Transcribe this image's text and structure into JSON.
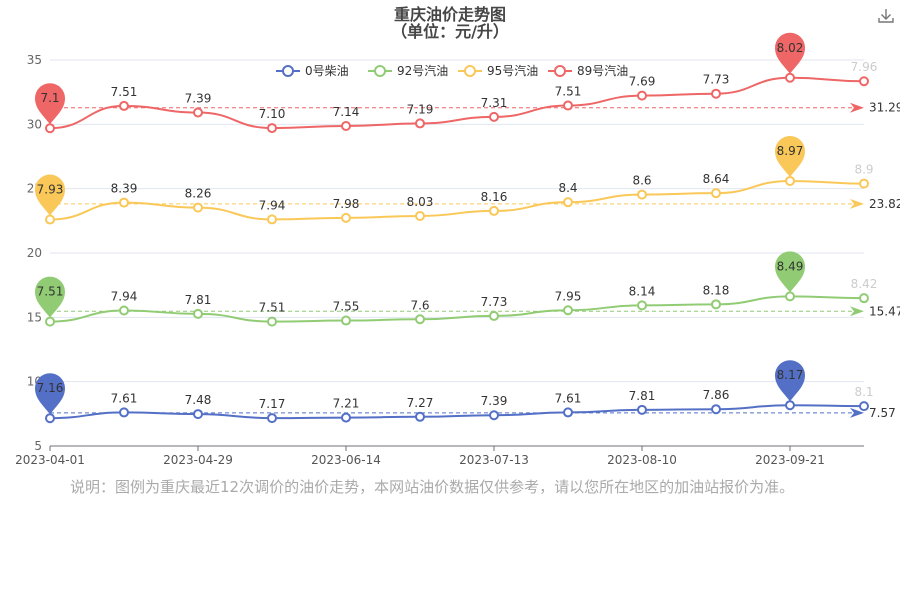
{
  "chart_data": {
    "type": "line",
    "title": "重庆油价走势图",
    "subtitle": "（单位：元/升）",
    "x_tick_labels": [
      "2023-04-01",
      "2023-04-29",
      "2023-06-14",
      "2023-07-13",
      "2023-08-10",
      "2023-09-21"
    ],
    "x_tick_indices": [
      0,
      2,
      4,
      6,
      8,
      10
    ],
    "ylim": [
      5,
      35
    ],
    "yticks": [
      "5",
      "10",
      "15",
      "20",
      "25",
      "30",
      "35"
    ],
    "grid": true,
    "legend_position": "top-center",
    "series": [
      {
        "name": "0号柴油",
        "color": "#5470c6",
        "values": [
          7.16,
          7.61,
          7.48,
          7.17,
          7.21,
          7.27,
          7.39,
          7.61,
          7.81,
          7.86,
          8.17,
          8.1
        ],
        "labels": [
          "7.16",
          "7.61",
          "7.48",
          "7.17",
          "7.21",
          "7.27",
          "7.39",
          "7.61",
          "7.81",
          "7.86",
          "8.17",
          "8.1"
        ],
        "plot_y": [
          7.16,
          7.61,
          7.48,
          7.17,
          7.21,
          7.27,
          7.39,
          7.61,
          7.81,
          7.86,
          8.17,
          8.1
        ],
        "max_pin": "8.17",
        "min_pin": "7.16",
        "average_label": "7.57",
        "average_value": 7.57
      },
      {
        "name": "92号汽油",
        "color": "#91cc75",
        "values": [
          7.51,
          7.94,
          7.81,
          7.51,
          7.55,
          7.6,
          7.73,
          7.95,
          8.14,
          8.18,
          8.49,
          8.42
        ],
        "labels": [
          "7.51",
          "7.94",
          "7.81",
          "7.51",
          "7.55",
          "7.6",
          "7.73",
          "7.95",
          "8.14",
          "8.18",
          "8.49",
          "8.42"
        ],
        "plot_y": [
          14.67,
          15.53,
          15.27,
          14.67,
          14.75,
          14.85,
          15.11,
          15.55,
          15.93,
          16.01,
          16.63,
          16.49
        ],
        "max_pin": "8.49",
        "min_pin": "7.51",
        "average_label": "15.47",
        "average_value": 15.47
      },
      {
        "name": "95号汽油",
        "color": "#fac858",
        "values": [
          7.93,
          8.39,
          8.26,
          7.94,
          7.98,
          8.03,
          8.16,
          8.4,
          8.6,
          8.64,
          8.97,
          8.9
        ],
        "labels": [
          "7.93",
          "8.39",
          "8.26",
          "7.94",
          "7.98",
          "8.03",
          "8.16",
          "8.4",
          "8.6",
          "8.64",
          "8.97",
          "8.9"
        ],
        "plot_y": [
          22.6,
          23.92,
          23.53,
          22.61,
          22.73,
          22.88,
          23.27,
          23.95,
          24.54,
          24.65,
          25.6,
          25.39
        ],
        "max_pin": "8.97",
        "min_pin": "7.93",
        "average_label": "23.82",
        "average_value": 23.82
      },
      {
        "name": "89号汽油",
        "color": "#ee6666",
        "values": [
          7.1,
          7.51,
          7.39,
          7.1,
          7.14,
          7.19,
          7.31,
          7.51,
          7.69,
          7.73,
          8.02,
          7.96
        ],
        "labels": [
          "7.1",
          "7.51",
          "7.39",
          "7.10",
          "7.14",
          "7.19",
          "7.31",
          "7.51",
          "7.69",
          "7.73",
          "8.02",
          "7.96"
        ],
        "plot_y": [
          29.7,
          31.43,
          30.92,
          29.71,
          29.87,
          30.07,
          30.58,
          31.46,
          32.23,
          32.38,
          33.62,
          33.35
        ],
        "max_pin": "8.02",
        "min_pin": "7.1",
        "average_label": "31.29",
        "average_value": 31.29
      }
    ]
  },
  "note": "说明：图例为重庆最近12次调价的油价走势，本网站油价数据仅供参考，请以您所在地区的加油站报价为准。",
  "toolbar": {
    "download_icon": "download-icon"
  }
}
